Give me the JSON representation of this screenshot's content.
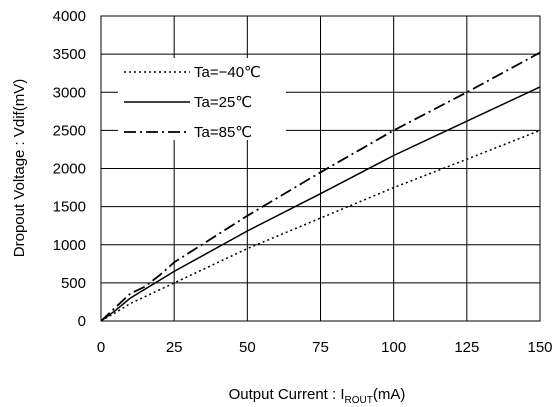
{
  "chart_data": {
    "type": "line",
    "xlabel_main": "Output Current : I",
    "xlabel_sub": "ROUT",
    "xlabel_unit": "(mA)",
    "ylabel": "Dropout Voltage : Vdif(mV)",
    "xlim": [
      0,
      150
    ],
    "ylim": [
      0,
      4000
    ],
    "x_ticks": [
      "0",
      "25",
      "50",
      "75",
      "100",
      "125",
      "150"
    ],
    "y_ticks": [
      "0",
      "500",
      "1000",
      "1500",
      "2000",
      "2500",
      "3000",
      "3500",
      "4000"
    ],
    "grid": true,
    "legend_position": "top-left",
    "series": [
      {
        "name": "Ta=−40℃",
        "style": "dotted",
        "x": [
          0,
          5,
          10,
          25,
          50,
          75,
          100,
          125,
          150
        ],
        "y": [
          0,
          110,
          230,
          500,
          950,
          1350,
          1750,
          2120,
          2500
        ]
      },
      {
        "name": "Ta=25℃",
        "style": "solid",
        "x": [
          0,
          5,
          10,
          25,
          50,
          75,
          100,
          125,
          150
        ],
        "y": [
          0,
          140,
          300,
          650,
          1180,
          1670,
          2170,
          2620,
          3070
        ]
      },
      {
        "name": "Ta=85℃",
        "style": "dashdot",
        "x": [
          0,
          5,
          10,
          15,
          20,
          25,
          50,
          75,
          100,
          125,
          150
        ],
        "y": [
          0,
          180,
          360,
          450,
          600,
          770,
          1380,
          1950,
          2500,
          3000,
          3520
        ]
      }
    ]
  }
}
